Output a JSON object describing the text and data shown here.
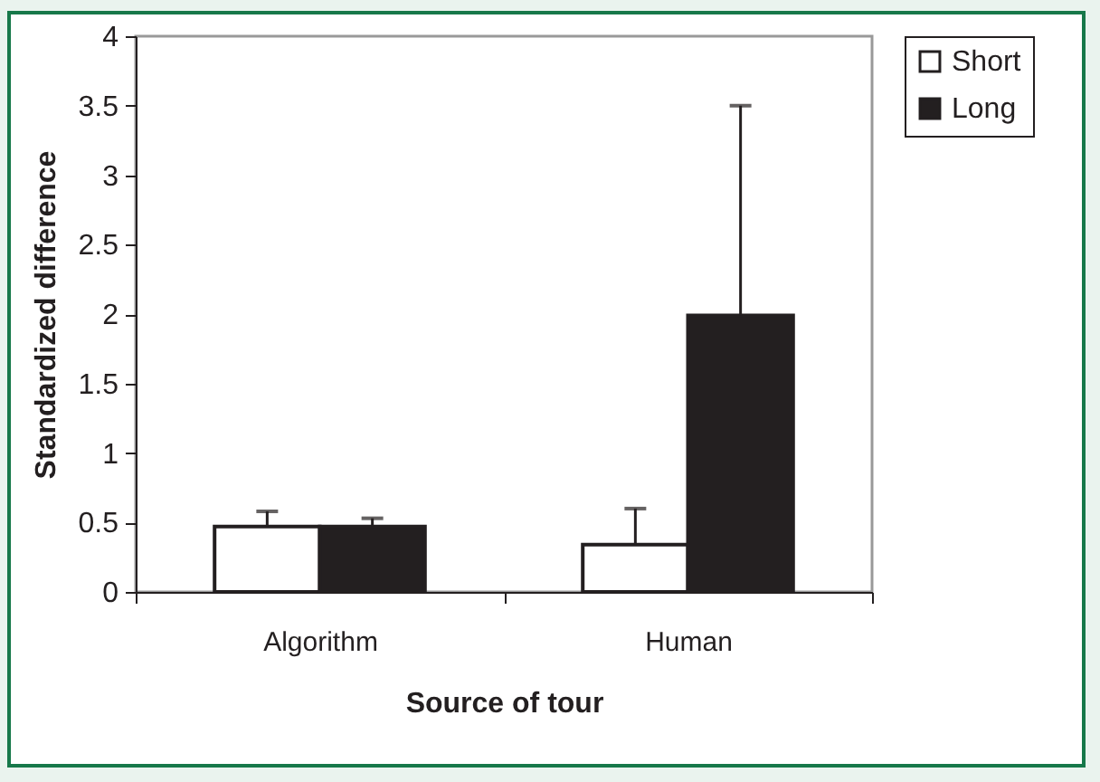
{
  "chart_data": {
    "type": "bar",
    "xlabel": "Source of tour",
    "ylabel": "Standardized difference",
    "categories": [
      "Algorithm",
      "Human"
    ],
    "series": [
      {
        "name": "Short",
        "color": "#ffffff",
        "values": [
          0.47,
          0.34
        ],
        "errors": [
          [
            0.47,
            0.58
          ],
          [
            0.34,
            0.6
          ]
        ]
      },
      {
        "name": "Long",
        "color": "#231f20",
        "values": [
          0.47,
          1.99
        ],
        "errors": [
          [
            0.47,
            0.53
          ],
          [
            1.99,
            3.5
          ]
        ]
      }
    ],
    "ylim": [
      0,
      4
    ],
    "yticks": [
      0,
      0.5,
      1,
      1.5,
      2,
      2.5,
      3,
      3.5,
      4
    ],
    "legend": "right"
  }
}
